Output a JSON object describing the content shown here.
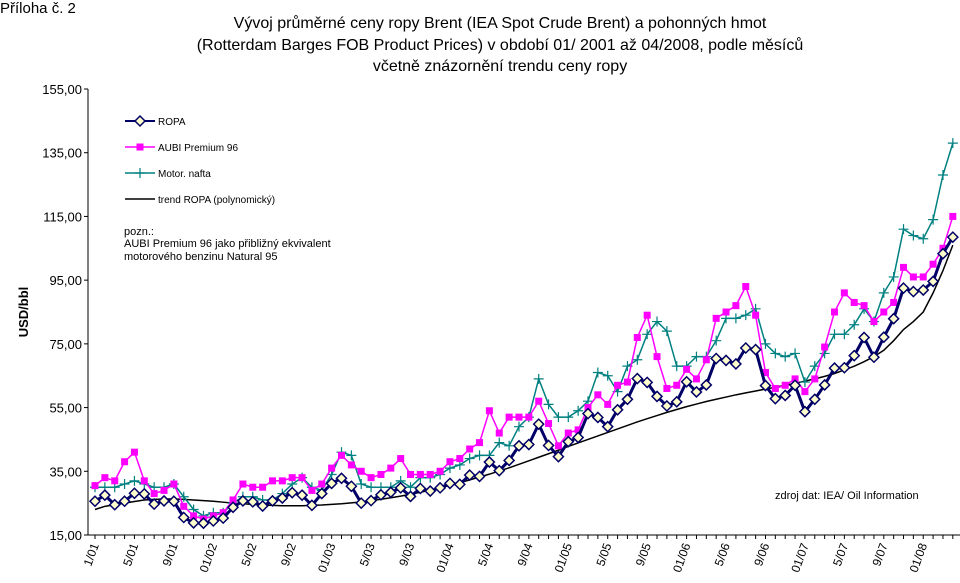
{
  "chart_data": {
    "type": "line",
    "annex": "Příloha č. 2",
    "title_lines": [
      "Vývoj průměrné ceny ropy Brent (IEA Spot Crude Brent) a pohonných hmot",
      "(Rotterdam Barges FOB Product Prices) v období 01/ 2001 až 04/2008, podle měsíců",
      "včetně znázornění trendu ceny ropy"
    ],
    "y_label": "USD/bbl",
    "note_lines": [
      "pozn.:",
      "AUBI Premium 96  jako přibližný ekvivalent",
      "motorového benzinu Natural 95"
    ],
    "source": "zdroj dat: IEA/ Oil Information",
    "ylim": [
      15,
      155
    ],
    "yticks": [
      {
        "value": 15,
        "label": "15,00"
      },
      {
        "value": 35,
        "label": "35,00"
      },
      {
        "value": 55,
        "label": "55,00"
      },
      {
        "value": 75,
        "label": "75,00"
      },
      {
        "value": 95,
        "label": "95,00"
      },
      {
        "value": 115,
        "label": "115,00"
      },
      {
        "value": 135,
        "label": "135,00"
      },
      {
        "value": 155,
        "label": "155,00"
      }
    ],
    "categories": [
      "1/01",
      null,
      null,
      null,
      "5/01",
      null,
      null,
      null,
      "9/01",
      null,
      null,
      null,
      "01/02",
      null,
      null,
      null,
      "5/02",
      null,
      null,
      null,
      "9/02",
      null,
      null,
      null,
      "01/03",
      null,
      null,
      null,
      "5/03",
      null,
      null,
      null,
      "9/03",
      null,
      null,
      null,
      "01/04",
      null,
      null,
      null,
      "5/04",
      null,
      null,
      null,
      "9/04",
      null,
      null,
      null,
      "01/05",
      null,
      null,
      null,
      "5/05",
      null,
      null,
      null,
      "9/05",
      null,
      null,
      null,
      "01/06",
      null,
      null,
      null,
      "5/06",
      null,
      null,
      null,
      "9/06",
      null,
      null,
      null,
      "01/07",
      null,
      null,
      null,
      "5/07",
      null,
      null,
      null,
      "9/07",
      null,
      null,
      null,
      "01/08",
      null,
      null,
      null
    ],
    "series": [
      {
        "name": "ROPA",
        "color": "#000066",
        "marker": "diamond",
        "marker_fill": "#ffffcc",
        "width": 3,
        "values": [
          25.6,
          27.5,
          24.5,
          25.6,
          28.1,
          27.9,
          24.7,
          25.7,
          25.6,
          20.5,
          18.8,
          18.7,
          19.4,
          20.3,
          23.7,
          25.7,
          25.4,
          24.1,
          25.7,
          26.6,
          28.3,
          27.5,
          24.3,
          28.0,
          31.2,
          32.8,
          30.3,
          25.0,
          25.8,
          27.6,
          28.4,
          29.8,
          27.1,
          29.6,
          28.8,
          29.8,
          31.2,
          30.9,
          33.8,
          33.4,
          37.9,
          35.2,
          38.4,
          43.0,
          43.4,
          49.8,
          43.1,
          39.6,
          44.3,
          45.6,
          53.1,
          51.9,
          49.0,
          54.3,
          57.6,
          64.1,
          62.9,
          58.5,
          55.5,
          56.8,
          63.1,
          59.9,
          62.1,
          70.4,
          69.8,
          68.7,
          73.7,
          73.2,
          61.9,
          57.8,
          58.8,
          62.0,
          53.7,
          57.6,
          62.1,
          67.4,
          67.5,
          71.3,
          77.0,
          70.8,
          77.1,
          82.9,
          92.5,
          91.4,
          91.9,
          94.6,
          103.3,
          108.5
        ]
      },
      {
        "name": "AUBI Premium 96",
        "color": "#ff00ff",
        "marker": "square",
        "width": 1.5,
        "values": [
          30.5,
          33,
          32,
          38,
          41,
          32,
          28,
          29,
          31,
          24,
          21,
          20,
          21,
          22,
          26,
          31,
          30,
          30,
          32,
          32,
          33,
          33,
          29,
          31,
          36,
          40,
          37,
          35,
          33,
          34,
          36,
          39,
          34,
          34,
          34,
          35,
          38,
          39,
          42,
          44,
          54,
          47,
          52,
          52,
          52,
          57,
          50,
          43,
          47,
          48,
          55,
          59,
          56,
          62,
          63,
          77,
          84,
          71,
          61,
          62,
          67,
          64,
          70,
          83,
          85,
          87,
          93,
          84,
          66,
          61,
          62,
          64,
          60,
          64,
          74,
          85,
          91,
          88,
          87,
          82,
          85,
          88,
          99,
          96,
          96,
          100,
          105,
          115
        ]
      },
      {
        "name": "Motor. nafta",
        "color": "#008080",
        "marker": "plus",
        "width": 1.5,
        "values": [
          30,
          30,
          30,
          31,
          32,
          31,
          30,
          30,
          31,
          27,
          23,
          21,
          22,
          22,
          25,
          27,
          27,
          26,
          26,
          28,
          31,
          33,
          30,
          29,
          34,
          41,
          40,
          31,
          30,
          30,
          30,
          32,
          30,
          33,
          33,
          34,
          36,
          37,
          39,
          40,
          40,
          44,
          43,
          49,
          52,
          64,
          56,
          52,
          52,
          54,
          57,
          66,
          65,
          60,
          68,
          70,
          78,
          82,
          79,
          68,
          68,
          71,
          71,
          76,
          83,
          83,
          84,
          86,
          75,
          72,
          71,
          72,
          63,
          68,
          72,
          78,
          78,
          81,
          86,
          82,
          91,
          96,
          111,
          109,
          108,
          114,
          128,
          138
        ]
      },
      {
        "name": "trend ROPA (polynomický)",
        "color": "#000000",
        "marker": "none",
        "width": 1.5,
        "values": [
          23,
          24,
          24.5,
          25,
          25.5,
          26,
          26.2,
          26.3,
          26.3,
          26.2,
          26,
          25.8,
          25.6,
          25.3,
          25,
          24.8,
          24.6,
          24.4,
          24.3,
          24.2,
          24.2,
          24.2,
          24.3,
          24.4,
          24.6,
          24.8,
          25.1,
          25.4,
          25.8,
          26.2,
          26.7,
          27.2,
          27.8,
          28.4,
          29.1,
          29.8,
          30.6,
          31.4,
          32.3,
          33.2,
          34.1,
          35.1,
          36.1,
          37.2,
          38.3,
          39.4,
          40.5,
          41.6,
          42.8,
          43.9,
          45,
          46.1,
          47.2,
          48.3,
          49.4,
          50.5,
          51.5,
          52.5,
          53.5,
          54.4,
          55.3,
          56.1,
          56.9,
          57.6,
          58.3,
          59,
          59.6,
          60.2,
          60.8,
          61.4,
          62,
          62.6,
          63.3,
          64,
          64.8,
          65.7,
          66.8,
          68,
          69.4,
          71,
          73,
          76,
          79.5,
          82,
          85,
          91,
          98,
          106
        ]
      }
    ]
  }
}
